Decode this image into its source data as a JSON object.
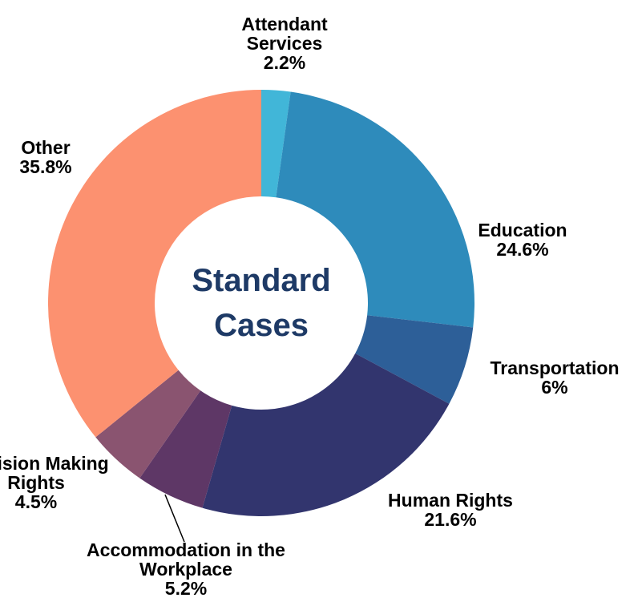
{
  "chart_data": {
    "type": "donut",
    "center_title": "Standard Cases",
    "categories": [
      "Attendant Services",
      "Education",
      "Transportation",
      "Human Rights",
      "Accommodation in the Workplace",
      "Decision Making Rights",
      "Other"
    ],
    "values": [
      2.2,
      24.6,
      6,
      21.6,
      5.2,
      4.5,
      35.8
    ],
    "value_labels": [
      "2.2%",
      "24.6%",
      "6%",
      "21.6%",
      "5.2%",
      "4.5%",
      "35.8%"
    ],
    "colors": [
      "#41b6d8",
      "#2e8bbb",
      "#2d5f98",
      "#32356e",
      "#5e3766",
      "#8a5470",
      "#fc9170"
    ]
  }
}
